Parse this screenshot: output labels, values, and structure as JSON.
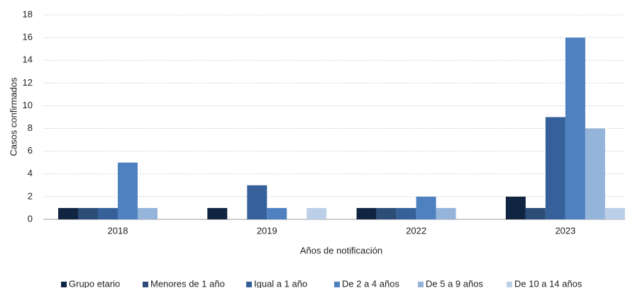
{
  "chart_data": {
    "type": "bar",
    "x_label": "Años de notificación",
    "y_label": "Casos confirmados",
    "categories": [
      "2018",
      "2019",
      "2022",
      "2023"
    ],
    "series": [
      {
        "name": "Grupo etario",
        "color": "#0f2542",
        "values": [
          1,
          1,
          1,
          2
        ]
      },
      {
        "name": "Menores de 1 año",
        "color": "#2c4d77",
        "values": [
          1,
          0,
          1,
          1
        ]
      },
      {
        "name": "Igual a 1 año",
        "color": "#36609a",
        "values": [
          1,
          3,
          1,
          9
        ]
      },
      {
        "name": "De 2 a 4 años",
        "color": "#4f81c0",
        "values": [
          5,
          1,
          2,
          16
        ]
      },
      {
        "name": "De 5 a 9 años",
        "color": "#94b4d9",
        "values": [
          1,
          0,
          1,
          8
        ]
      },
      {
        "name": "De 10 a 14 años",
        "color": "#bccfe8",
        "values": [
          0,
          1,
          0,
          1
        ]
      }
    ],
    "ylim": [
      0,
      18
    ],
    "yticks": [
      0,
      2,
      4,
      6,
      8,
      10,
      12,
      14,
      16,
      18
    ],
    "grid": true,
    "legend": "bottom"
  }
}
